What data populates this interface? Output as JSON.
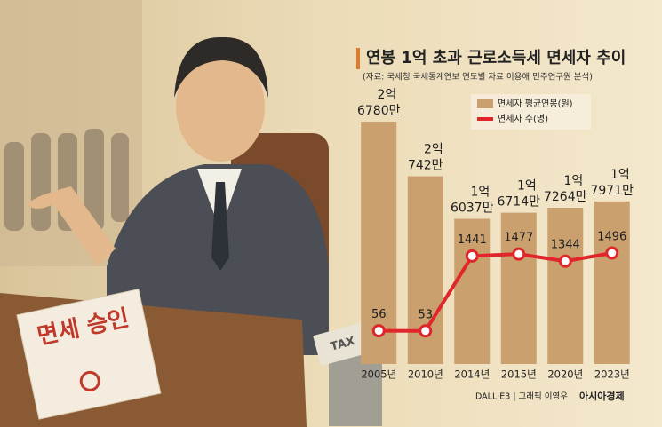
{
  "chart_data": {
    "type": "bar-line",
    "title": "연봉 1억 초과 근로소득세 면세자 추이",
    "subtitle": "(자료: 국세청 국세통계연보 연도별 자료 이용해 민주연구원 분석)",
    "categories": [
      "2005년",
      "2010년",
      "2014년",
      "2015년",
      "2020년",
      "2023년"
    ],
    "series": [
      {
        "name": "면세자 평균연봉(원)",
        "type": "bar",
        "color": "#c9a06e",
        "values": [
          267800000,
          207420000,
          160370000,
          167140000,
          172640000,
          179710000
        ],
        "value_labels": [
          "2억 6780만",
          "2억 742만",
          "1억 6037만",
          "1억 6714만",
          "1억 7264만",
          "1억 7971만"
        ]
      },
      {
        "name": "면세자 수(명)",
        "type": "line",
        "color": "#e0262a",
        "values": [
          56,
          53,
          1441,
          1477,
          1344,
          1496
        ]
      }
    ]
  },
  "illustration": {
    "stamp_text": "면세 승인",
    "paper_text": "TAX"
  },
  "credits": {
    "text": "DALL·E3 | 그래픽 이영우",
    "brand": "아시아경제"
  }
}
